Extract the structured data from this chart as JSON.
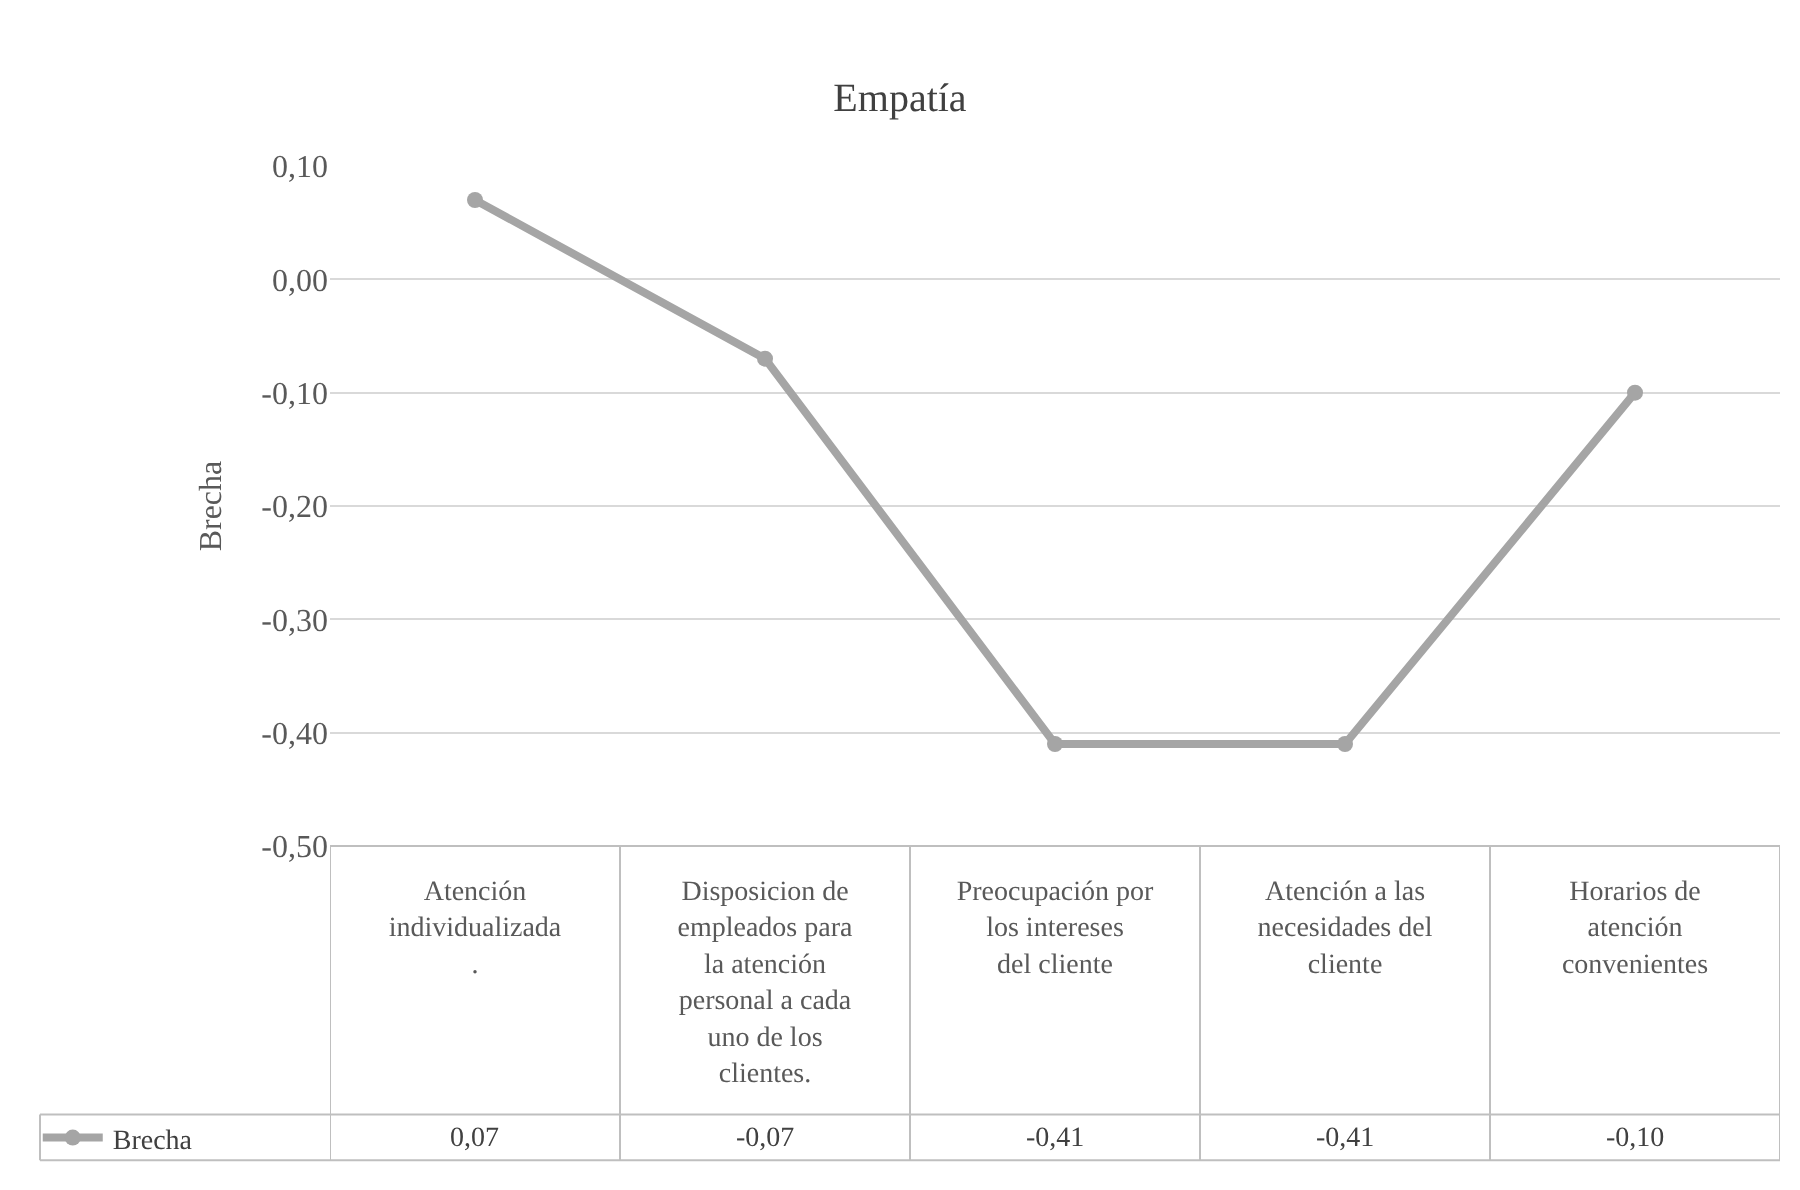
{
  "chart_data": {
    "type": "line",
    "title": "Empatía",
    "ylabel": "Brecha",
    "categories": [
      "Atención individualizada .",
      "Disposicion de empleados para la atención personal a cada uno de los clientes.",
      "Preocupación por los intereses del cliente",
      "Atención a las necesidades del cliente",
      "Horarios de atención convenientes"
    ],
    "series": [
      {
        "name": "Brecha",
        "color": "#a5a5a5",
        "values": [
          0.07,
          -0.07,
          -0.41,
          -0.41,
          -0.1
        ],
        "value_labels": [
          "0,07",
          "-0,07",
          "-0,41",
          "-0,41",
          "-0,10"
        ]
      }
    ],
    "ylim": [
      -0.5,
      0.1
    ],
    "yticks": [
      {
        "value": 0.1,
        "label": "0,10"
      },
      {
        "value": 0,
        "label": "0,00"
      },
      {
        "value": -0.1,
        "label": "-0,10"
      },
      {
        "value": -0.2,
        "label": "-0,20"
      },
      {
        "value": -0.3,
        "label": "-0,30"
      },
      {
        "value": -0.4,
        "label": "-0,40"
      },
      {
        "value": -0.5,
        "label": "-0,50"
      }
    ],
    "grid": "y",
    "legend": "bottom left",
    "marker": "circle",
    "line_style": "solid"
  }
}
